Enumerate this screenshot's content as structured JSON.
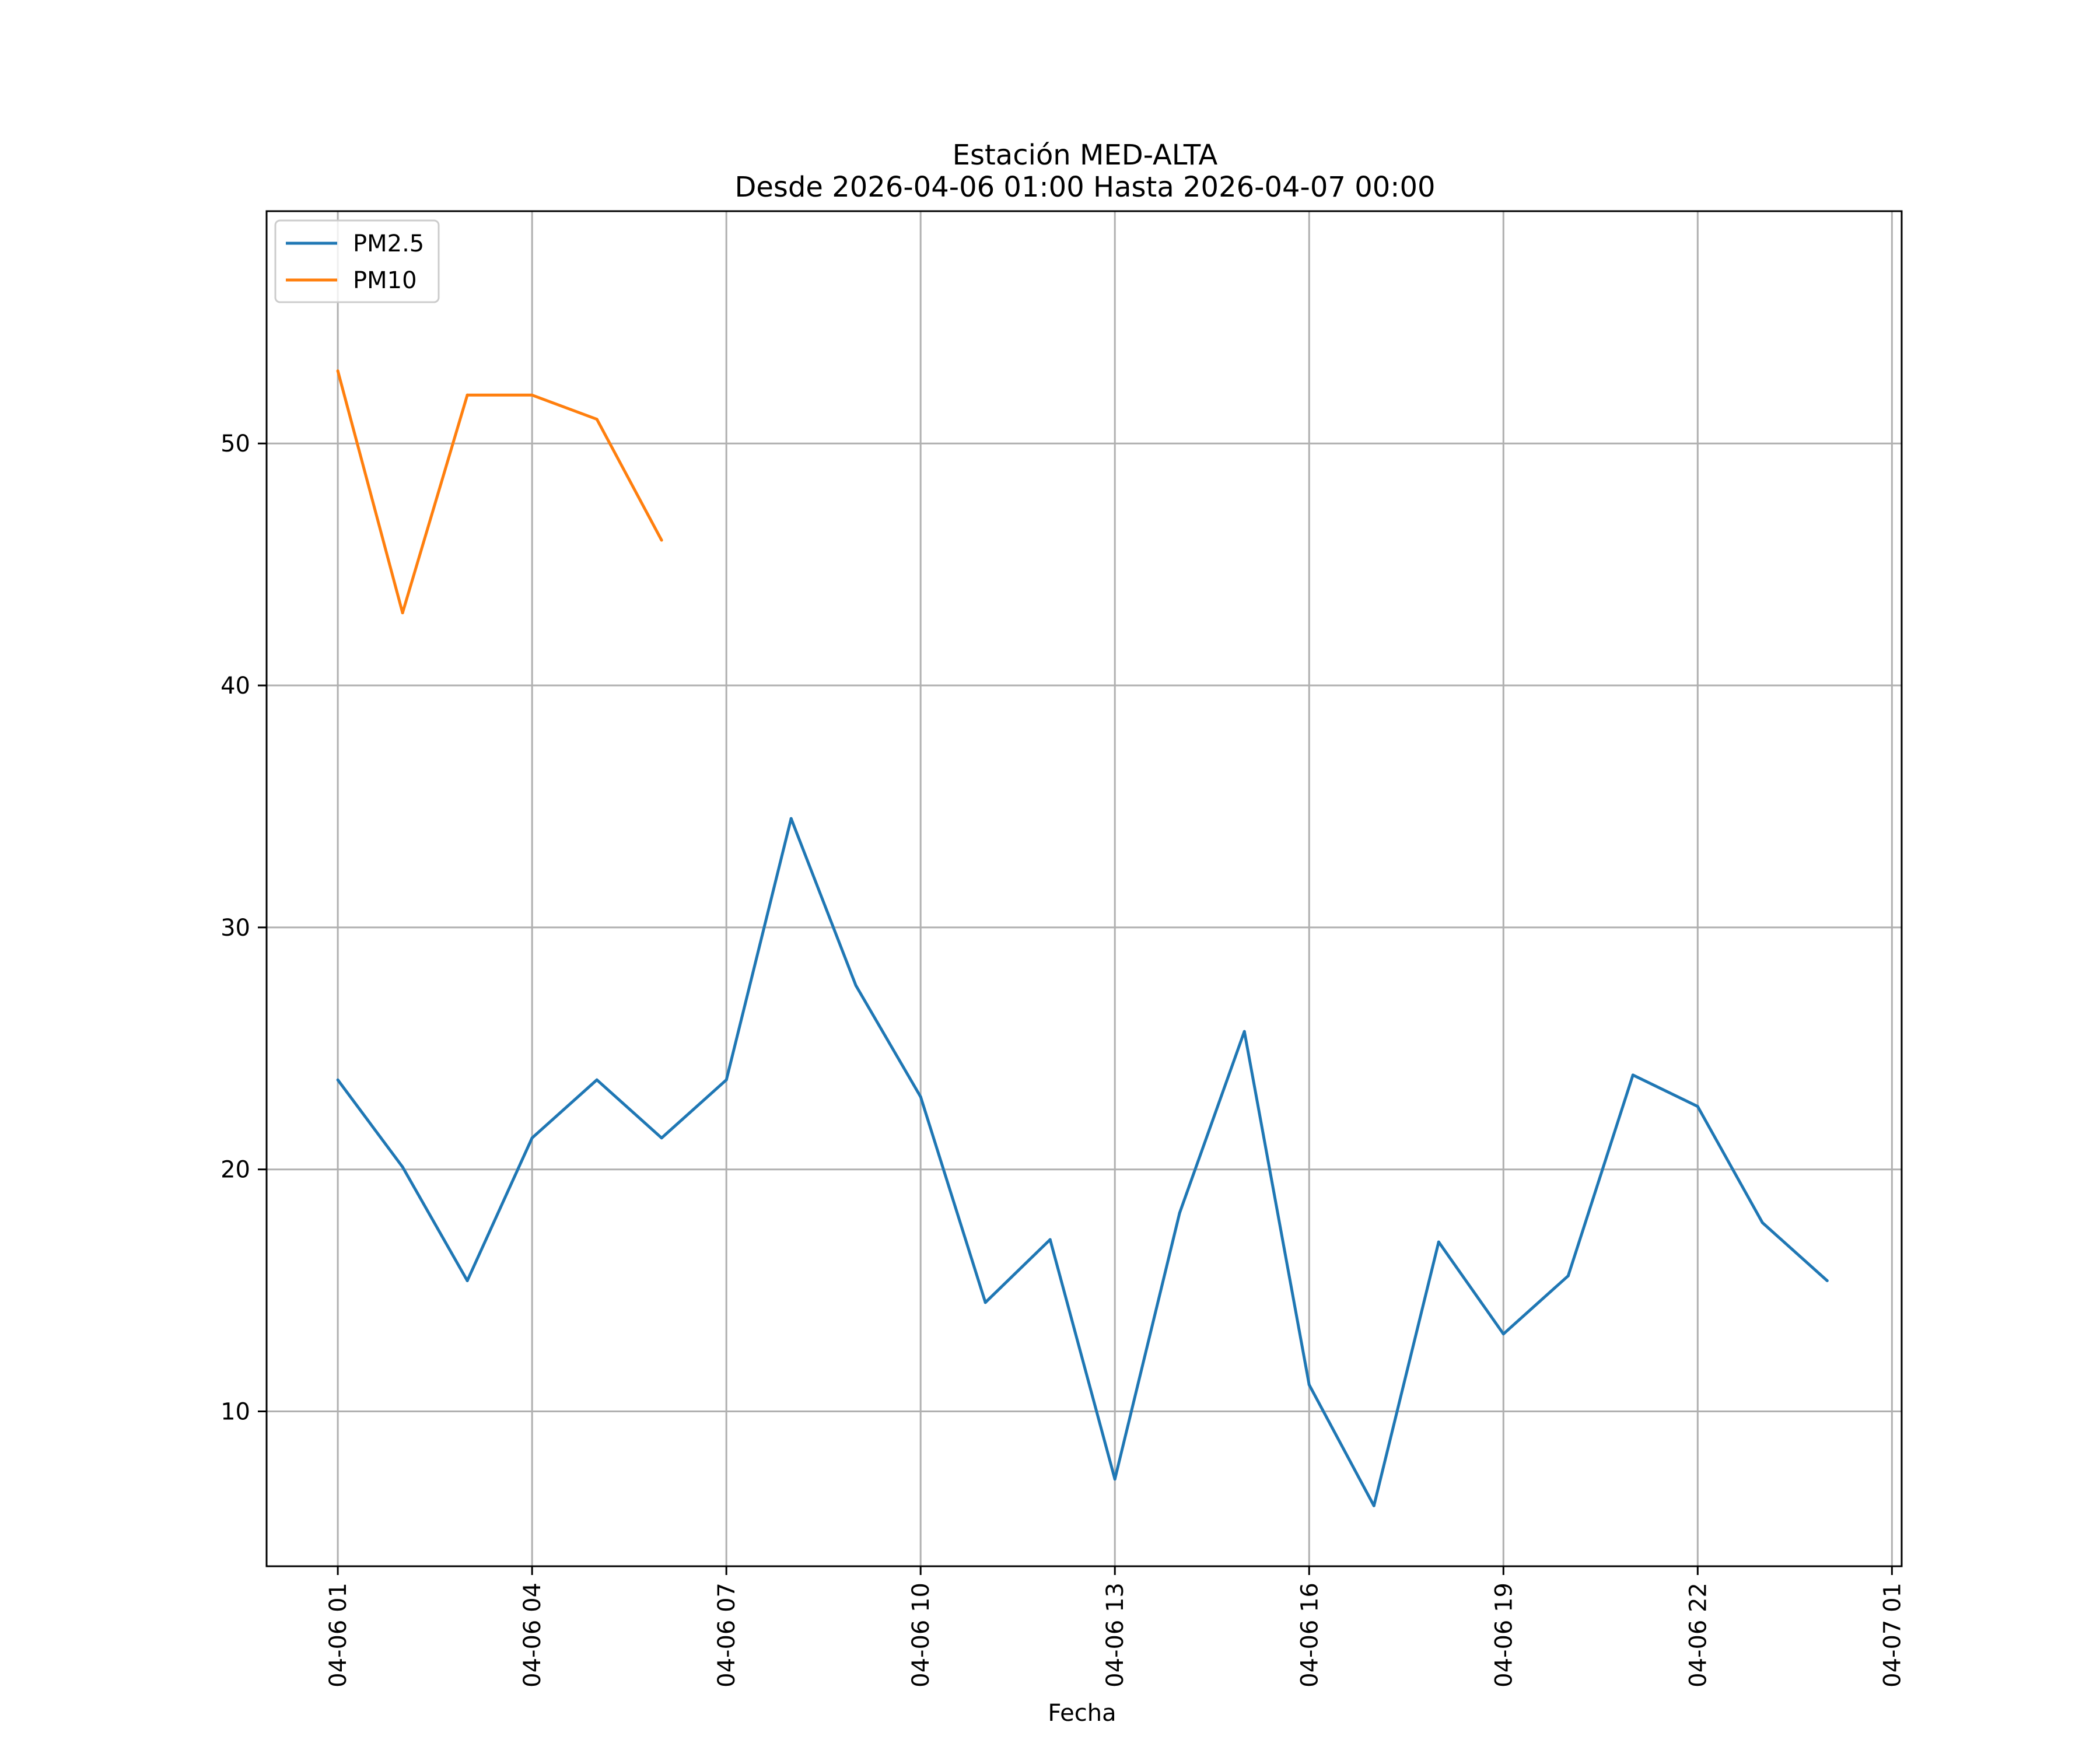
{
  "chart_data": {
    "type": "line",
    "title_line1": "Estación MED-ALTA",
    "title_line2": "Desde 2026-04-06 01:00 Hasta 2026-04-07 00:00",
    "xlabel": "Fecha",
    "ylabel": "",
    "x_hours": [
      1,
      2,
      3,
      4,
      5,
      6,
      7,
      8,
      9,
      10,
      11,
      12,
      13,
      14,
      15,
      16,
      17,
      18,
      19,
      20,
      21,
      22,
      23,
      24
    ],
    "xlim": [
      -0.1,
      25.15
    ],
    "ylim": [
      3.6,
      59.6
    ],
    "xticks": [
      {
        "hour": 1,
        "label": "04-06 01"
      },
      {
        "hour": 4,
        "label": "04-06 04"
      },
      {
        "hour": 7,
        "label": "04-06 07"
      },
      {
        "hour": 10,
        "label": "04-06 10"
      },
      {
        "hour": 13,
        "label": "04-06 13"
      },
      {
        "hour": 16,
        "label": "04-06 16"
      },
      {
        "hour": 19,
        "label": "04-06 19"
      },
      {
        "hour": 22,
        "label": "04-06 22"
      },
      {
        "hour": 25,
        "label": "04-07 01"
      }
    ],
    "yticks": [
      {
        "value": 10,
        "label": "10"
      },
      {
        "value": 20,
        "label": "20"
      },
      {
        "value": 30,
        "label": "30"
      },
      {
        "value": 40,
        "label": "40"
      },
      {
        "value": 50,
        "label": "50"
      }
    ],
    "grid": true,
    "legend_position": "upper-left",
    "series": [
      {
        "name": "PM2.5",
        "color": "#1f77b4",
        "values": [
          23.7,
          20.1,
          15.4,
          21.3,
          23.7,
          21.3,
          23.7,
          34.5,
          27.6,
          23.0,
          14.5,
          17.1,
          7.2,
          18.2,
          25.7,
          11.1,
          6.1,
          17.0,
          13.2,
          15.6,
          23.9,
          22.6,
          17.8,
          15.4
        ]
      },
      {
        "name": "PM10",
        "color": "#ff7f0e",
        "values": [
          53,
          43,
          52,
          52,
          51,
          46,
          null,
          null,
          null,
          null,
          null,
          null,
          null,
          null,
          null,
          null,
          null,
          null,
          null,
          null,
          null,
          null,
          null,
          null
        ]
      }
    ]
  }
}
